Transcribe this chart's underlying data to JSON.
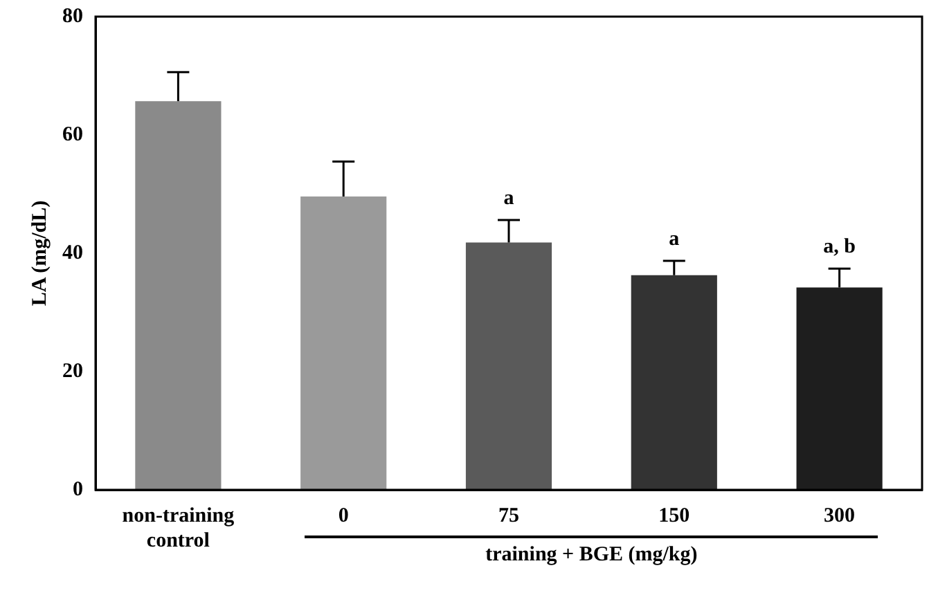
{
  "chart_data": {
    "type": "bar",
    "ylabel": "LA (mg/dL)",
    "xlabel": "training + BGE (mg/kg)",
    "categories": [
      "non-training control",
      "0",
      "75",
      "150",
      "300"
    ],
    "values": [
      65.7,
      49.6,
      41.8,
      36.3,
      34.2
    ],
    "errors": [
      4.9,
      5.9,
      3.8,
      2.4,
      3.2
    ],
    "colors": [
      "#8a8a8a",
      "#9a9a9a",
      "#5a5a5a",
      "#333333",
      "#1e1e1e"
    ],
    "ylim": [
      0,
      80
    ],
    "yticks": [
      0,
      20,
      40,
      60,
      80
    ],
    "grid": false,
    "legend": false,
    "annotations": [
      {
        "text": "a",
        "x": "75",
        "y": 45.6
      },
      {
        "text": "a",
        "x": "150",
        "y": 38.7
      },
      {
        "text": "a, b",
        "x": "300",
        "y": 37.4
      }
    ]
  }
}
